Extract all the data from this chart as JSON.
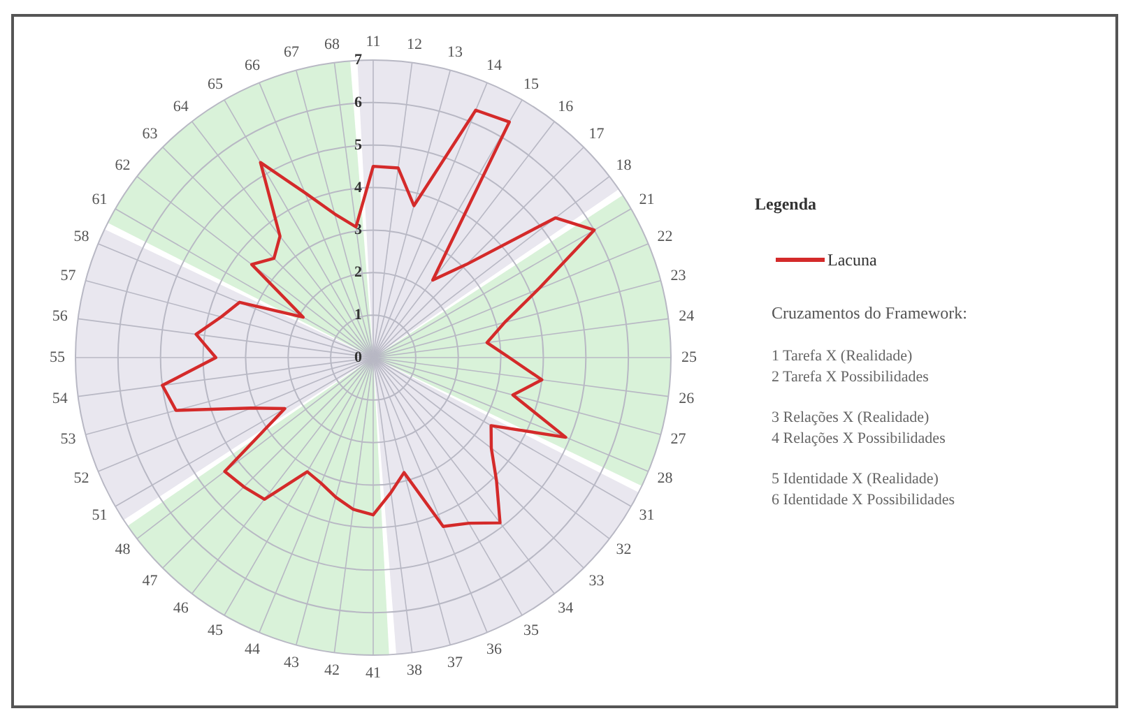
{
  "chart_data": {
    "type": "radar",
    "categories": [
      "11",
      "12",
      "13",
      "14",
      "15",
      "16",
      "17",
      "18",
      "21",
      "22",
      "23",
      "24",
      "25",
      "26",
      "27",
      "28",
      "31",
      "32",
      "33",
      "34",
      "35",
      "36",
      "37",
      "38",
      "41",
      "42",
      "43",
      "44",
      "45",
      "46",
      "47",
      "48",
      "51",
      "52",
      "53",
      "54",
      "55",
      "56",
      "57",
      "58",
      "61",
      "62",
      "63",
      "64",
      "65",
      "66",
      "67",
      "68"
    ],
    "series": [
      {
        "name": "Lacuna",
        "color": "#d42a2a",
        "values": [
          4.5,
          4.5,
          3.7,
          6.3,
          6.4,
          2.3,
          3.1,
          5.4,
          6.0,
          4.2,
          3.2,
          2.7,
          3.2,
          4.0,
          3.4,
          4.9,
          3.2,
          3.5,
          4.1,
          4.9,
          4.5,
          4.3,
          2.8,
          3.2,
          3.7,
          3.6,
          3.4,
          3.2,
          3.1,
          4.2,
          4.3,
          4.4,
          2.4,
          3.1,
          4.8,
          5.0,
          3.7,
          4.2,
          3.7,
          3.4,
          1.9,
          3.6,
          3.3,
          3.6,
          5.3,
          4.2,
          3.5,
          3.1
        ]
      }
    ],
    "ylim": [
      0,
      7
    ],
    "yticks": [
      0,
      1,
      2,
      3,
      4,
      5,
      6,
      7
    ],
    "grid": true,
    "legend": "right",
    "legend_title": "Legenda",
    "marker": "none",
    "line_style": "solid",
    "annotations": [
      "Cruzamentos do Framework:",
      "1 Tarefa X (Realidade)",
      "2 Tarefa X Possibilidades",
      "3 Relações X (Realidade)",
      "4 Relações X Possibilidades",
      "5 Identidade X (Realidade)",
      "6 Identidade X Possibilidades"
    ]
  }
}
